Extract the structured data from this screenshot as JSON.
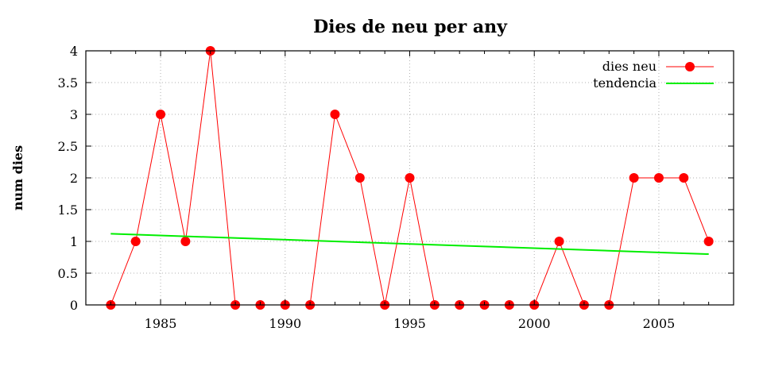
{
  "chart_data": {
    "type": "line",
    "title": "Dies de neu per any",
    "xlabel": "",
    "ylabel": "num dies",
    "xlim": [
      1982,
      2008
    ],
    "ylim": [
      0,
      4
    ],
    "xticks": [
      1985,
      1990,
      1995,
      2000,
      2005
    ],
    "yticks": [
      0,
      0.5,
      1,
      1.5,
      2,
      2.5,
      3,
      3.5,
      4
    ],
    "grid": true,
    "legend_position": "top-right",
    "series": [
      {
        "name": "dies neu",
        "color": "#ff0000",
        "marker": "circle",
        "x": [
          1983,
          1984,
          1985,
          1986,
          1987,
          1988,
          1989,
          1990,
          1991,
          1992,
          1993,
          1994,
          1995,
          1996,
          1997,
          1998,
          1999,
          2000,
          2001,
          2002,
          2003,
          2004,
          2005,
          2006,
          2007
        ],
        "y": [
          0,
          1,
          3,
          1,
          4,
          0,
          0,
          0,
          0,
          3,
          2,
          0,
          2,
          0,
          0,
          0,
          0,
          0,
          1,
          0,
          0,
          2,
          2,
          2,
          1
        ]
      },
      {
        "name": "tendencia",
        "color": "#00ee00",
        "marker": "none",
        "x": [
          1983,
          2007
        ],
        "y": [
          1.12,
          0.8
        ]
      }
    ]
  }
}
